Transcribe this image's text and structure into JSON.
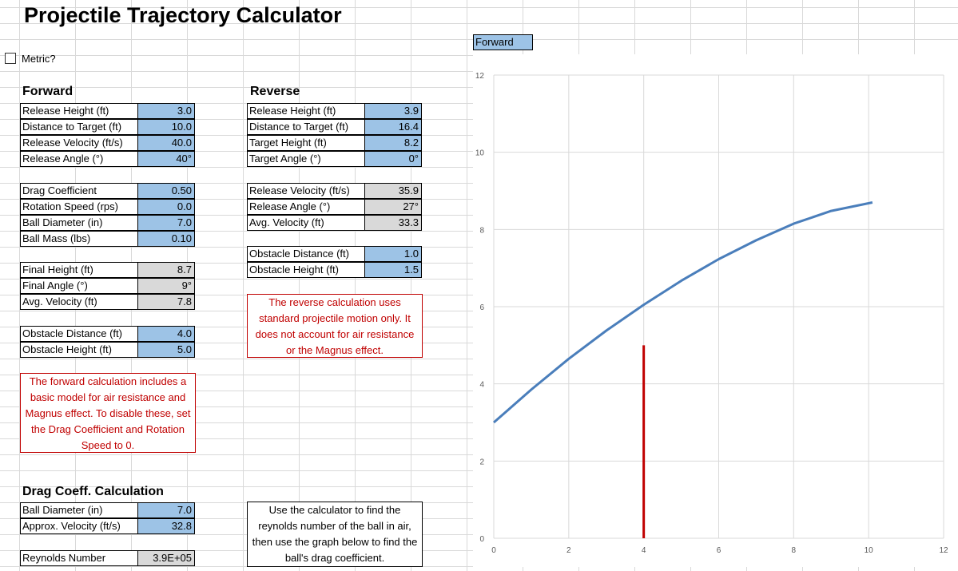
{
  "title": "Projectile Trajectory Calculator",
  "metric": {
    "label": "Metric?",
    "checked": false
  },
  "forward": {
    "heading": "Forward",
    "inputs": [
      {
        "label": "Release Height (ft)",
        "value": "3.0"
      },
      {
        "label": "Distance to Target (ft)",
        "value": "10.0"
      },
      {
        "label": "Release Velocity (ft/s)",
        "value": "40.0"
      },
      {
        "label": "Release Angle (°)",
        "value": "40°"
      }
    ],
    "physics": [
      {
        "label": "Drag Coefficient",
        "value": "0.50"
      },
      {
        "label": "Rotation Speed (rps)",
        "value": "0.0"
      },
      {
        "label": "Ball Diameter (in)",
        "value": "7.0"
      },
      {
        "label": "Ball Mass (lbs)",
        "value": "0.10"
      }
    ],
    "outputs": [
      {
        "label": "Final Height (ft)",
        "value": "8.7"
      },
      {
        "label": "Final Angle (°)",
        "value": "9°"
      },
      {
        "label": "Avg. Velocity (ft)",
        "value": "7.8"
      }
    ],
    "obstacle": [
      {
        "label": "Obstacle Distance (ft)",
        "value": "4.0"
      },
      {
        "label": "Obstacle Height (ft)",
        "value": "5.0"
      }
    ],
    "note": "The forward calculation includes a basic model for air resistance and Magnus effect. To disable these, set the Drag Coefficient and Rotation Speed to 0."
  },
  "reverse": {
    "heading": "Reverse",
    "inputs": [
      {
        "label": "Release Height (ft)",
        "value": "3.9"
      },
      {
        "label": "Distance to Target (ft)",
        "value": "16.4"
      },
      {
        "label": "Target Height (ft)",
        "value": "8.2"
      },
      {
        "label": "Target Angle (°)",
        "value": "0°"
      }
    ],
    "outputs": [
      {
        "label": "Release Velocity (ft/s)",
        "value": "35.9"
      },
      {
        "label": "Release Angle (°)",
        "value": "27°"
      },
      {
        "label": "Avg. Velocity (ft)",
        "value": "33.3"
      }
    ],
    "obstacle": [
      {
        "label": "Obstacle Distance (ft)",
        "value": "1.0"
      },
      {
        "label": "Obstacle Height (ft)",
        "value": "1.5"
      }
    ],
    "note": "The reverse calculation uses standard projectile motion only. It does not account for air resistance or the Magnus effect."
  },
  "drag": {
    "heading": "Drag Coeff. Calculation",
    "inputs": [
      {
        "label": "Ball Diameter (in)",
        "value": "7.0"
      },
      {
        "label": "Approx. Velocity (ft/s)",
        "value": "32.8"
      }
    ],
    "reynolds": {
      "label": "Reynolds Number",
      "value": "3.9E+05"
    },
    "note": "Use the calculator to find the reynolds number of the ball in air, then use the graph below to find the ball's drag coefficient."
  },
  "chart_selector": "Forward",
  "colors": {
    "input": "#9dc3e6",
    "output": "#d9d9d9",
    "note": "#c00000",
    "trajectory": "#4a7ebb",
    "obstacle": "#c00000"
  },
  "chart_data": {
    "type": "line",
    "xlim": [
      0,
      12
    ],
    "ylim": [
      0,
      12
    ],
    "x_ticks": [
      0,
      2,
      4,
      6,
      8,
      10,
      12
    ],
    "y_ticks": [
      0,
      2,
      4,
      6,
      8,
      10,
      12
    ],
    "grid": true,
    "series": [
      {
        "x": [
          0,
          1,
          2,
          3,
          4,
          5,
          6,
          7,
          8,
          9,
          10.1
        ],
        "y": [
          3.0,
          3.85,
          4.65,
          5.38,
          6.05,
          6.67,
          7.23,
          7.72,
          8.15,
          8.48,
          8.7
        ]
      }
    ],
    "obstacle": {
      "x": 4,
      "y": [
        0,
        5
      ]
    }
  }
}
